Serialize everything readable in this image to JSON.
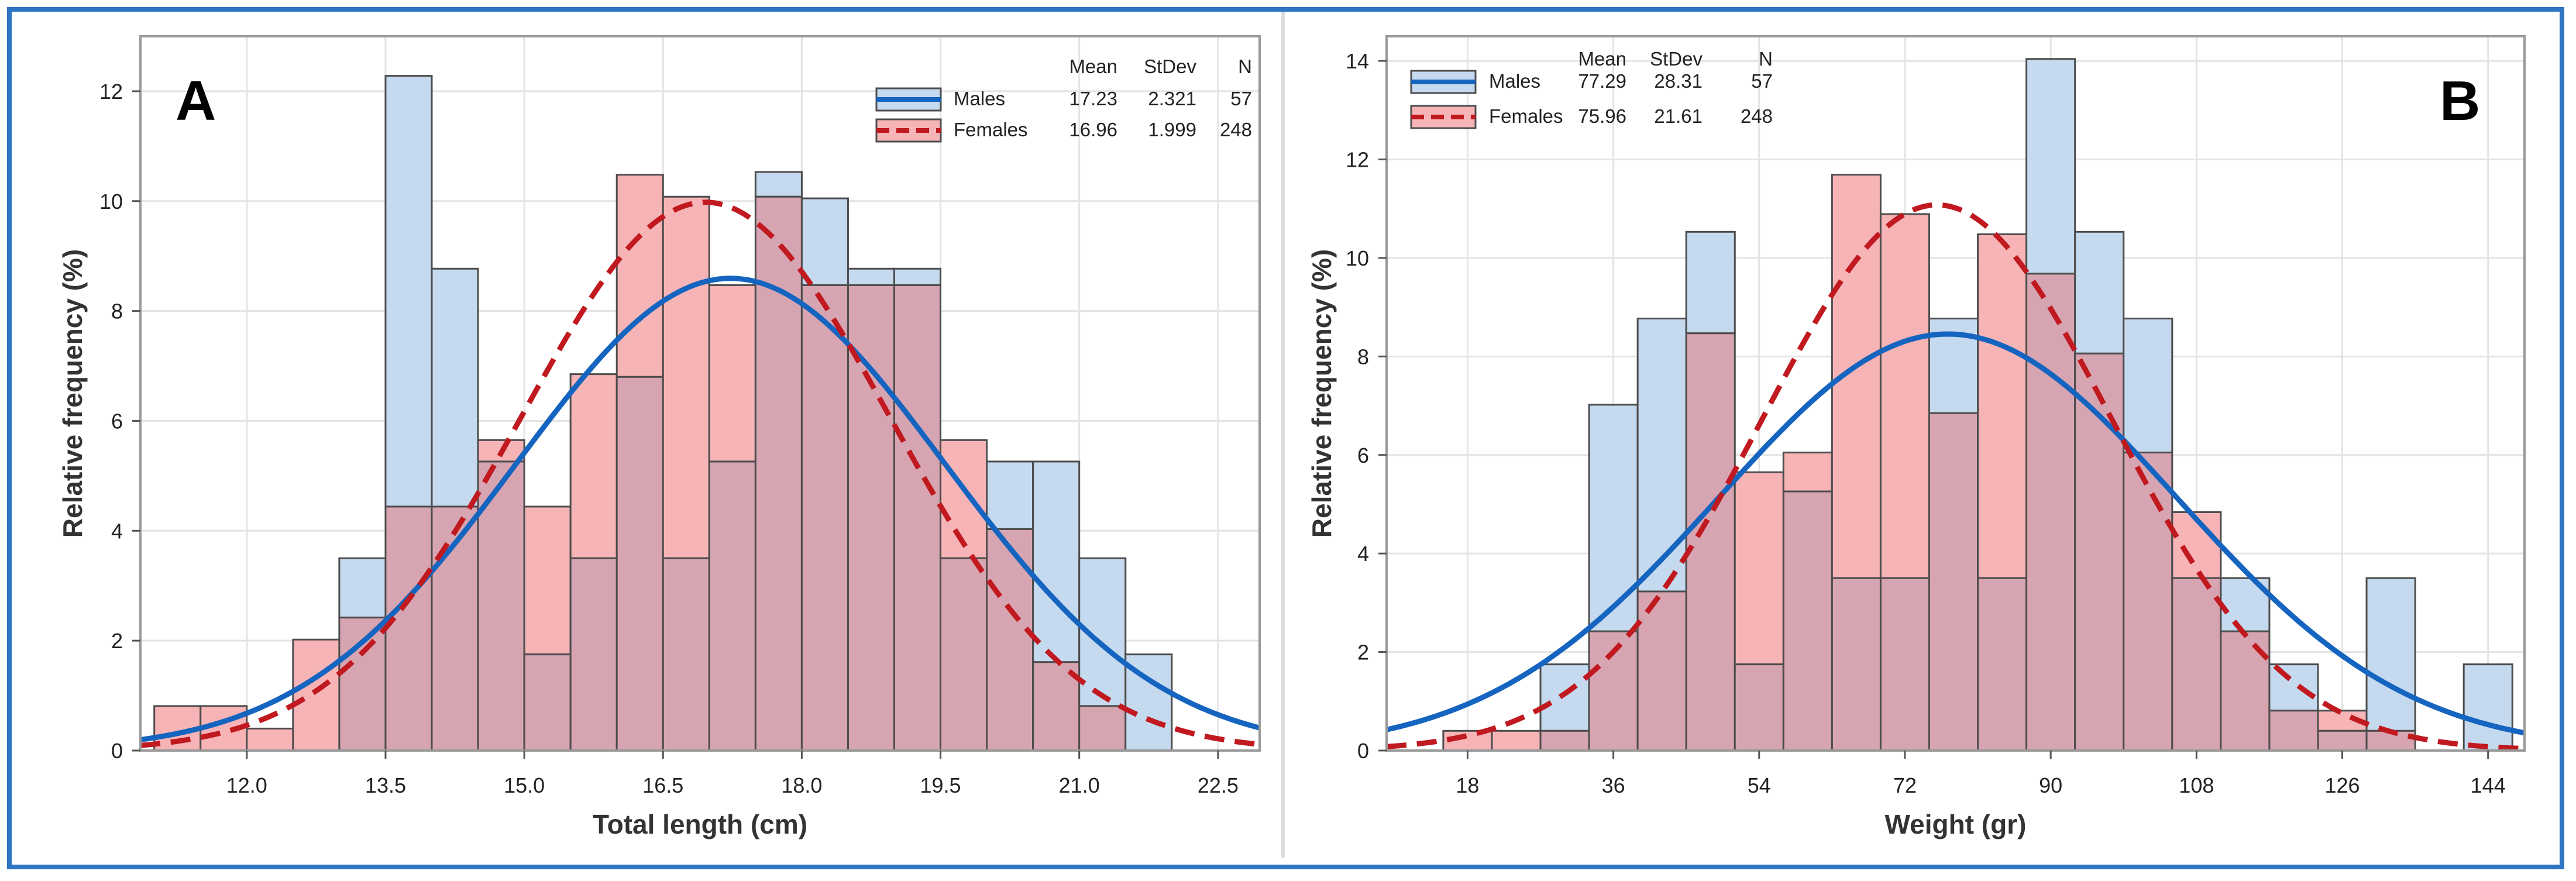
{
  "colors": {
    "male_fill": "#c5d9ef",
    "male_line": "#1565c0",
    "female_fill": "#f7b4b6",
    "female_line": "#c0191f",
    "overlap_fill": "#d7a5b1",
    "bar_stroke": "#4d4d4d",
    "grid": "#e4e4e4",
    "frame": "#2e75c4"
  },
  "chart_data": [
    {
      "type": "histogram",
      "panel_label": "A",
      "xlabel": "Total length (cm)",
      "ylabel": "Relative frequency (%)",
      "xlim": [
        10.85,
        22.95
      ],
      "ylim": [
        0,
        13
      ],
      "xticks": [
        12.0,
        13.5,
        15.0,
        16.5,
        18.0,
        19.5,
        21.0,
        22.5
      ],
      "xtick_labels": [
        "12.0",
        "13.5",
        "15.0",
        "16.5",
        "18.0",
        "19.5",
        "21.0",
        "22.5"
      ],
      "yticks": [
        0,
        2,
        4,
        6,
        8,
        10,
        12
      ],
      "ytick_labels": [
        "0",
        "2",
        "4",
        "6",
        "8",
        "10",
        "12"
      ],
      "bin_start": 11.0,
      "bin_width": 0.5,
      "series": [
        {
          "name": "Males",
          "mean": "17.23",
          "stdev": "2.321",
          "n": "57",
          "mean_value": 17.23,
          "stdev_value": 2.321,
          "n_value": 57,
          "values": [
            0,
            0,
            0,
            0,
            3.5,
            12.28,
            8.77,
            5.26,
            1.75,
            3.5,
            6.8,
            3.5,
            5.26,
            10.53,
            10.05,
            8.77,
            8.77,
            3.5,
            5.26,
            5.26,
            3.5,
            1.75,
            0
          ]
        },
        {
          "name": "Females",
          "mean": "16.96",
          "stdev": "1.999",
          "n": "248",
          "mean_value": 16.96,
          "stdev_value": 1.999,
          "n_value": 248,
          "values": [
            0.81,
            0.81,
            0.4,
            2.02,
            2.42,
            4.44,
            4.44,
            5.65,
            4.44,
            6.85,
            10.48,
            10.08,
            8.47,
            10.08,
            8.47,
            8.47,
            8.47,
            5.65,
            4.03,
            1.61,
            0.81,
            0,
            0
          ]
        }
      ],
      "legend_headers": [
        "Mean",
        "StDev",
        "N"
      ],
      "legend_position": "top-right"
    },
    {
      "type": "histogram",
      "panel_label": "B",
      "xlabel": "Weight (gr)",
      "ylabel": "Relative frequency (%)",
      "xlim": [
        8,
        148.5
      ],
      "ylim": [
        0,
        14.5
      ],
      "xticks": [
        18,
        36,
        54,
        72,
        90,
        108,
        126,
        144
      ],
      "xtick_labels": [
        "18",
        "36",
        "54",
        "72",
        "90",
        "108",
        "126",
        "144"
      ],
      "yticks": [
        0,
        2,
        4,
        6,
        8,
        10,
        12,
        14
      ],
      "ytick_labels": [
        "0",
        "2",
        "4",
        "6",
        "8",
        "10",
        "12",
        "14"
      ],
      "bin_start": 15,
      "bin_width": 6,
      "series": [
        {
          "name": "Males",
          "mean": "77.29",
          "stdev": "28.31",
          "n": "57",
          "mean_value": 77.29,
          "stdev_value": 28.31,
          "n_value": 57,
          "values": [
            0,
            0,
            1.75,
            7.02,
            8.77,
            10.53,
            1.75,
            5.26,
            3.5,
            3.5,
            8.77,
            3.5,
            14.04,
            10.53,
            8.77,
            3.5,
            3.5,
            1.75,
            0.4,
            3.5,
            0,
            1.75
          ]
        },
        {
          "name": "Females",
          "mean": "75.96",
          "stdev": "21.61",
          "n": "248",
          "mean_value": 75.96,
          "stdev_value": 21.61,
          "n_value": 248,
          "values": [
            0.4,
            0.4,
            0.4,
            2.42,
            3.23,
            8.47,
            5.65,
            6.05,
            11.69,
            10.89,
            6.85,
            10.48,
            9.68,
            8.06,
            6.05,
            4.84,
            2.42,
            0.81,
            0.81,
            0.4,
            0,
            0
          ]
        }
      ],
      "legend_headers": [
        "Mean",
        "StDev",
        "N"
      ],
      "legend_position": "top-left"
    }
  ]
}
